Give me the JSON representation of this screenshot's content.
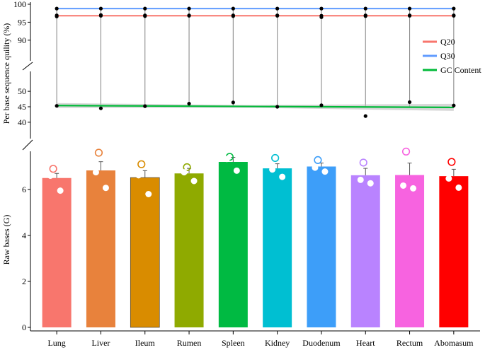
{
  "chart_data": {
    "type": "bar",
    "categories": [
      "Lung",
      "Liver",
      "Ileum",
      "Rumen",
      "Spleen",
      "Kidney",
      "Duodenum",
      "Heart",
      "Rectum",
      "Abomasum"
    ],
    "colors": [
      "#F8766D",
      "#E8823C",
      "#D98C00",
      "#8FAA00",
      "#00BA42",
      "#00BFD2",
      "#3D9EF9",
      "#B983FF",
      "#F763E0",
      "#FF0000"
    ],
    "upper_panel": {
      "ylabel": "Per base sequence quility (%)",
      "segments": [
        {
          "range": [
            88,
            100
          ],
          "ticks": [
            90,
            95,
            100
          ]
        },
        {
          "range": [
            37,
            53
          ],
          "ticks": [
            40,
            45,
            50
          ]
        }
      ],
      "series": [
        {
          "name": "Q20",
          "color": "#F8766D",
          "values": [
            96.8,
            96.8,
            96.8,
            96.8,
            96.8,
            96.8,
            96.8,
            96.8,
            96.8,
            96.8
          ],
          "points": [
            [
              96.9,
              96.6
            ],
            [
              97.0,
              96.8
            ],
            [
              96.9,
              96.7
            ],
            [
              96.9,
              96.8
            ],
            [
              96.9,
              96.7
            ],
            [
              96.9,
              96.8
            ],
            [
              96.8,
              96.4
            ],
            [
              96.9,
              96.7
            ],
            [
              96.9,
              96.8
            ],
            [
              96.9,
              96.8
            ]
          ]
        },
        {
          "name": "Q30",
          "color": "#619CFF",
          "values": [
            98.8,
            98.8,
            98.8,
            98.8,
            98.8,
            98.8,
            98.8,
            98.8,
            98.8,
            98.8
          ],
          "points": [
            [
              98.8
            ],
            [
              98.8
            ],
            [
              98.8
            ],
            [
              98.8
            ],
            [
              98.8
            ],
            [
              98.8
            ],
            [
              98.8
            ],
            [
              98.8
            ],
            [
              98.8
            ],
            [
              98.8
            ]
          ]
        },
        {
          "name": "GC Content",
          "color": "#00BA38",
          "trend": [
            45.4,
            44.8
          ],
          "points": [
            [
              45.3
            ],
            [
              44.5
            ],
            [
              45.2
            ],
            [
              46.0
            ],
            [
              46.4
            ],
            [
              45.0
            ],
            [
              45.5
            ],
            [
              42.0
            ],
            [
              46.5
            ],
            [
              45.4
            ]
          ]
        }
      ],
      "whisker_range": [
        45.0,
        98.8
      ]
    },
    "lower_panel": {
      "ylabel": "Raw bases (G)",
      "ylim": [
        0,
        7.6
      ],
      "yticks": [
        0,
        2,
        4,
        6
      ],
      "values": [
        6.5,
        6.83,
        6.52,
        6.7,
        7.2,
        6.92,
        7.0,
        6.62,
        6.63,
        6.58
      ],
      "errors": [
        0.2,
        0.38,
        0.3,
        0.22,
        0.2,
        0.2,
        0.15,
        0.3,
        0.52,
        0.3
      ],
      "points": [
        [
          6.9,
          6.6,
          5.95
        ],
        [
          7.6,
          6.75,
          6.07
        ],
        [
          7.1,
          6.62,
          5.8
        ],
        [
          6.97,
          6.75,
          6.37
        ],
        [
          7.42,
          7.33,
          6.82
        ],
        [
          7.37,
          6.87,
          6.55
        ],
        [
          7.28,
          6.95,
          6.78
        ],
        [
          7.17,
          6.42,
          6.27
        ],
        [
          7.65,
          6.17,
          6.05
        ],
        [
          7.2,
          6.48,
          6.08
        ]
      ]
    },
    "legend": {
      "position": "right",
      "entries": [
        {
          "label": "Q20",
          "color": "#F8766D"
        },
        {
          "label": "Q30",
          "color": "#619CFF"
        },
        {
          "label": "GC Content",
          "color": "#00BA38"
        }
      ]
    }
  }
}
